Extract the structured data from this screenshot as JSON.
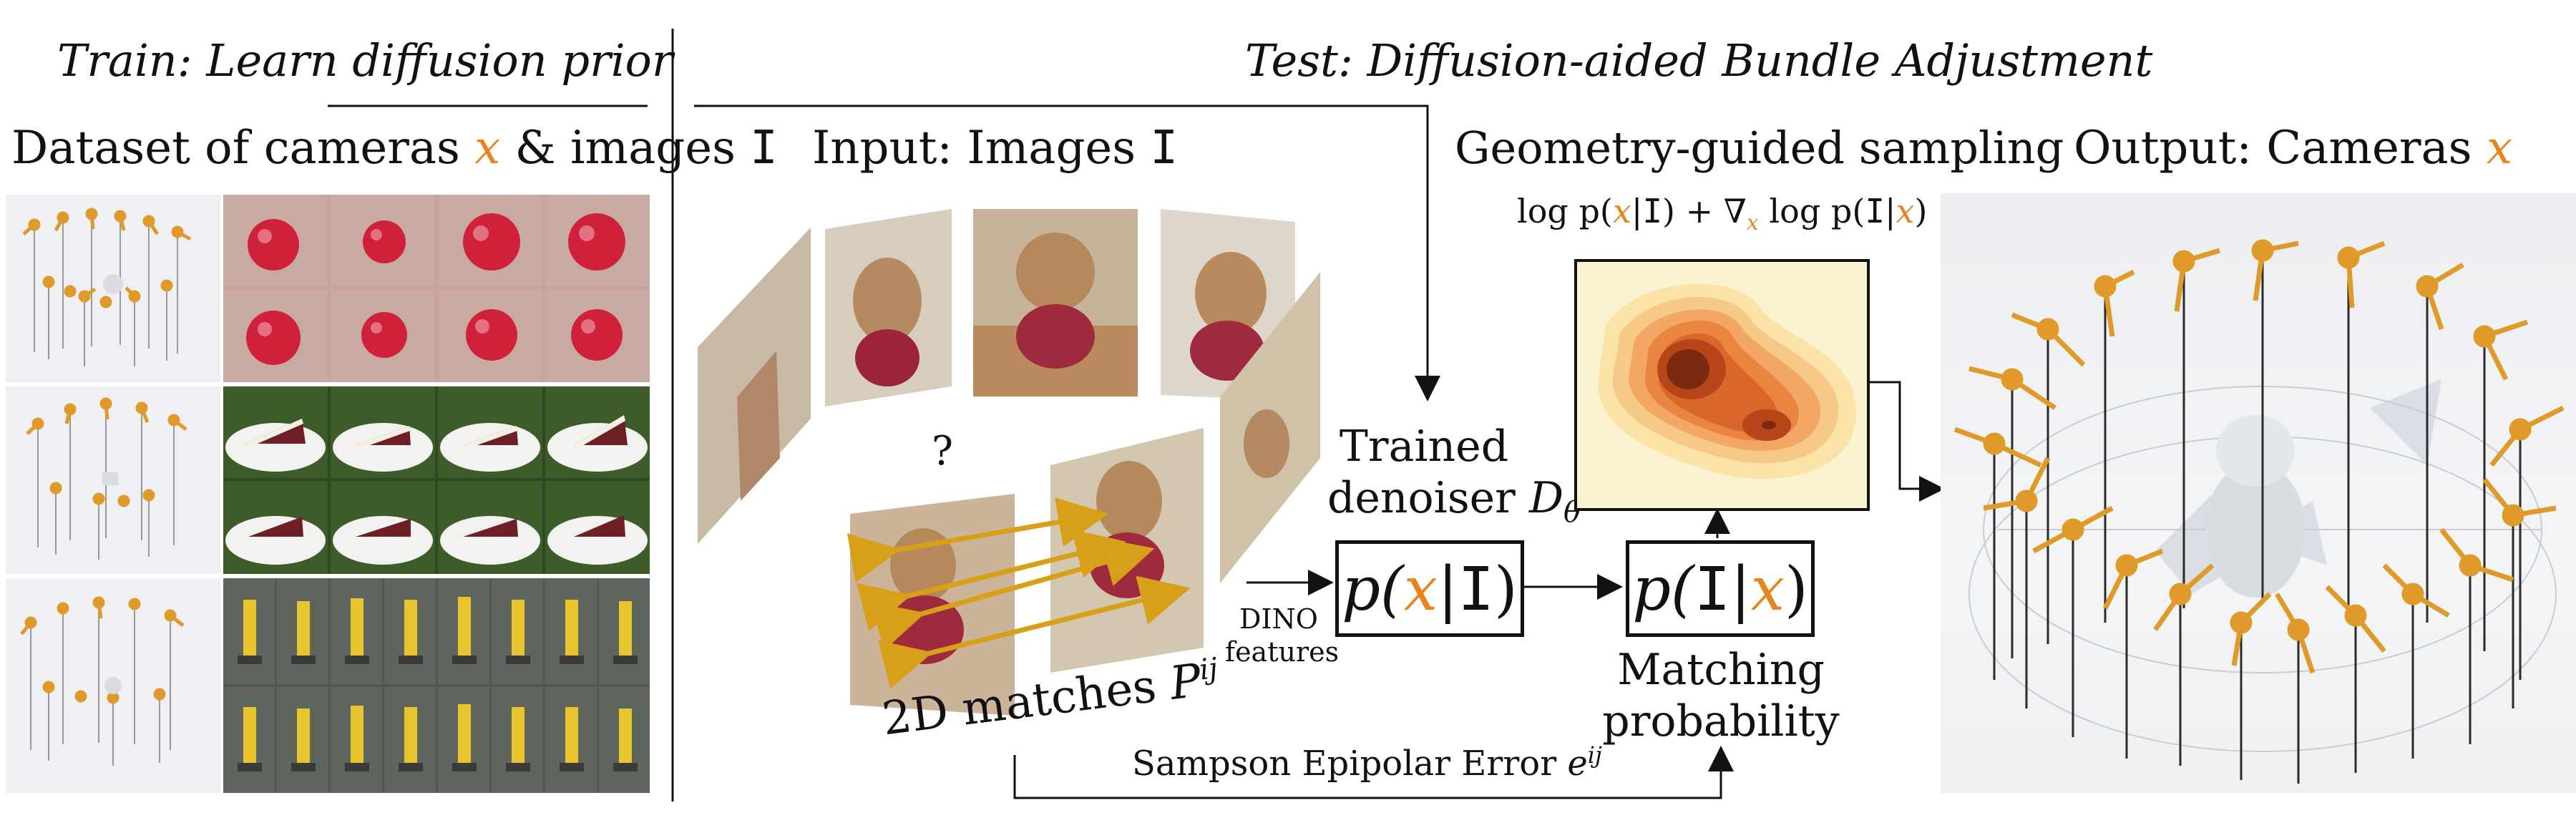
{
  "train": {
    "heading": "Train: Learn diffusion prior",
    "dataset_pre": "Dataset of cameras ",
    "dataset_var": "x",
    "dataset_mid": " & images ",
    "dataset_img": "I"
  },
  "test": {
    "heading": "Test: Diffusion-aided Bundle Adjustment",
    "input_pre": "Input: Images ",
    "input_img": "I",
    "question": "?",
    "matches_pre": "2D matches ",
    "matches_var": "P",
    "matches_sup": "ij",
    "dino_line1": "DINO",
    "dino_line2": "features",
    "denoiser_line1": "Trained",
    "denoiser_line2_pre": "denoiser ",
    "denoiser_var": "D",
    "denoiser_sub": "θ",
    "box1": {
      "p": "p(",
      "x": "x",
      "bar": "|",
      "I": "I",
      "close": ")"
    },
    "box2": {
      "p": "p(",
      "I": "I",
      "bar": "|",
      "x": "x",
      "close": ")"
    },
    "geometry_title": "Geometry-guided sampling",
    "formula": {
      "t1": "log p(",
      "x1": "x",
      "t2": "|",
      "I1": "I",
      "t3": ") + ∇",
      "x2": "x",
      "t4": " log p(",
      "I2": "I",
      "t5": "|",
      "x3": "x",
      "t6": ")"
    },
    "matching_line1": "Matching",
    "matching_line2": "probability",
    "sampson_pre": "Sampson Epipolar Error ",
    "sampson_var": "e",
    "sampson_sup": "ij",
    "output_pre": "Output: Cameras ",
    "output_var": "x"
  },
  "colors": {
    "accent": "#e8851a",
    "camera_orange": "#e09a2a",
    "arrow_gold": "#d8a018"
  }
}
